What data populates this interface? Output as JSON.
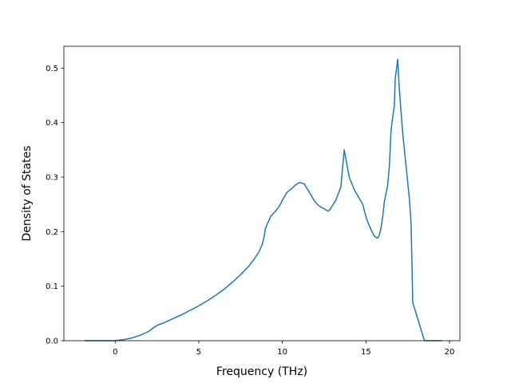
{
  "chart_data": {
    "type": "line",
    "xlabel": "Frequency (THz)",
    "ylabel": "Density of States",
    "xlim": [
      -3.07,
      20.62
    ],
    "ylim": [
      0,
      0.54
    ],
    "xticks": [
      0,
      5,
      10,
      15,
      20
    ],
    "yticks": [
      0.0,
      0.1,
      0.2,
      0.3,
      0.4,
      0.5
    ],
    "xtick_labels": [
      "0",
      "5",
      "10",
      "15",
      "20"
    ],
    "ytick_labels": [
      "0.0",
      "0.1",
      "0.2",
      "0.3",
      "0.4",
      "0.5"
    ],
    "grid": false,
    "series": [
      {
        "color": "#1f77b4",
        "x": [
          -1.8,
          -1.0,
          0.0,
          0.5,
          1.0,
          1.5,
          2.0,
          2.3,
          2.5,
          3.0,
          3.5,
          4.0,
          4.5,
          5.0,
          5.5,
          6.0,
          6.5,
          7.0,
          7.5,
          8.0,
          8.3,
          8.6,
          8.8,
          8.9,
          9.0,
          9.3,
          9.6,
          9.8,
          9.9,
          10.0,
          10.3,
          10.6,
          10.7,
          10.8,
          11.0,
          11.3,
          11.6,
          11.9,
          12.1,
          12.3,
          12.5,
          12.6,
          12.7,
          12.75,
          12.8,
          12.9,
          13.0,
          13.2,
          13.5,
          13.7,
          14.0,
          14.3,
          14.6,
          14.8,
          14.95,
          15.1,
          15.3,
          15.5,
          15.7,
          15.8,
          15.9,
          16.0,
          16.1,
          16.3,
          16.4,
          16.5,
          16.6,
          16.7,
          16.75,
          16.9,
          17.0,
          17.2,
          17.4,
          17.5,
          17.6,
          17.7,
          17.8,
          18.5,
          19.5
        ],
        "y": [
          0.0,
          0.0,
          0.0,
          0.002,
          0.005,
          0.01,
          0.017,
          0.024,
          0.028,
          0.034,
          0.041,
          0.048,
          0.056,
          0.064,
          0.073,
          0.083,
          0.094,
          0.107,
          0.121,
          0.137,
          0.149,
          0.163,
          0.177,
          0.19,
          0.207,
          0.228,
          0.238,
          0.246,
          0.251,
          0.258,
          0.273,
          0.28,
          0.283,
          0.286,
          0.29,
          0.288,
          0.273,
          0.257,
          0.25,
          0.245,
          0.242,
          0.24,
          0.238,
          0.238,
          0.239,
          0.243,
          0.248,
          0.258,
          0.282,
          0.35,
          0.3,
          0.277,
          0.261,
          0.251,
          0.233,
          0.218,
          0.204,
          0.192,
          0.188,
          0.194,
          0.206,
          0.227,
          0.255,
          0.285,
          0.32,
          0.385,
          0.41,
          0.43,
          0.48,
          0.516,
          0.46,
          0.38,
          0.32,
          0.29,
          0.26,
          0.215,
          0.07,
          0.0,
          0.0
        ]
      }
    ]
  }
}
